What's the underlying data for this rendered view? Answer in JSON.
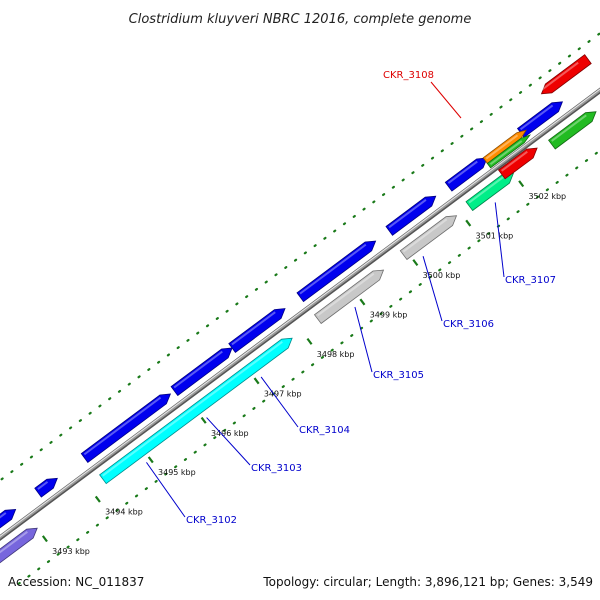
{
  "title": "Clostridium kluyveri NBRC 12016, complete genome",
  "accession_text": "Accession: NC_011837",
  "topology_text": "Topology: circular; Length: 3,896,121 bp; Genes: 3,549",
  "colors": {
    "backbone": "#8c8c8c",
    "dots": "#1a7a1a",
    "tick": "#1a7a1a",
    "label_link_blue": "#0000cc",
    "label_link_red": "#dd0000"
  },
  "ticks": [
    {
      "kbp": 3493,
      "label": "3493 kbp"
    },
    {
      "kbp": 3494,
      "label": "3494 kbp"
    },
    {
      "kbp": 3495,
      "label": "3495 kbp"
    },
    {
      "kbp": 3496,
      "label": "3496 kbp"
    },
    {
      "kbp": 3497,
      "label": "3497 kbp"
    },
    {
      "kbp": 3498,
      "label": "3498 kbp"
    },
    {
      "kbp": 3499,
      "label": "3499 kbp"
    },
    {
      "kbp": 3500,
      "label": "3500 kbp"
    },
    {
      "kbp": 3501,
      "label": "3501 kbp"
    },
    {
      "kbp": 3502,
      "label": "3502 kbp"
    }
  ],
  "labeled_genes": [
    {
      "label": "CKR_3102",
      "color": "#0000cc"
    },
    {
      "label": "CKR_3103",
      "color": "#0000cc"
    },
    {
      "label": "CKR_3104",
      "color": "#0000cc"
    },
    {
      "label": "CKR_3105",
      "color": "#0000cc"
    },
    {
      "label": "CKR_3106",
      "color": "#0000cc"
    },
    {
      "label": "CKR_3107",
      "color": "#0000cc"
    },
    {
      "label": "CKR_3108",
      "color": "#dd0000"
    }
  ],
  "gene_colors": {
    "forward": "#0000ee",
    "red": "#ee0000",
    "orange": "#ff8c00",
    "cyan": "#00ffff",
    "gray": "#c8c8c8",
    "spring_green": "#00ee88",
    "green": "#22bb22",
    "slate_blue": "#7766dd"
  }
}
